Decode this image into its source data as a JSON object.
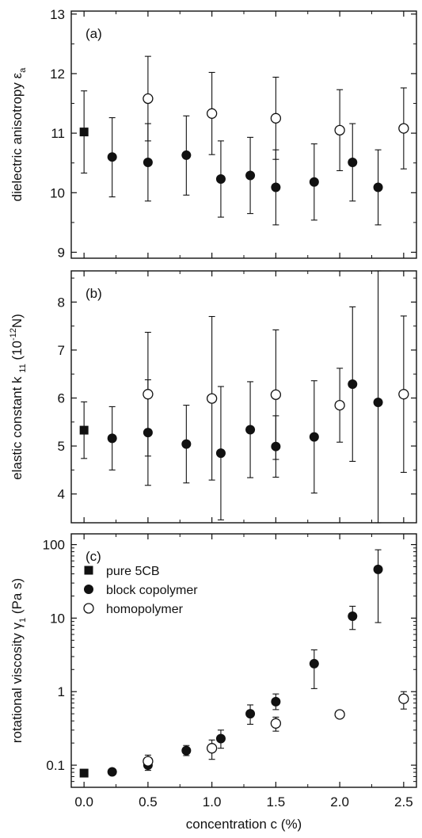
{
  "chart_data": [
    {
      "type": "scatter",
      "panel_label": "(a)",
      "ylabel": "dielectric anisotropy",
      "ylabel_symbol": "ε",
      "ylabel_sub": "a",
      "ylim": [
        8.9,
        13.05
      ],
      "yticks": [
        "9",
        "10",
        "11",
        "12",
        "13"
      ],
      "xlim": [
        -0.1,
        2.6
      ],
      "series": [
        {
          "key": "pure",
          "marker": "square-filled",
          "points": [
            {
              "x": 0.0,
              "y": 11.02,
              "lo": 10.33,
              "hi": 11.71
            }
          ]
        },
        {
          "key": "block",
          "marker": "circle-filled",
          "points": [
            {
              "x": 0.22,
              "y": 10.6,
              "lo": 9.93,
              "hi": 11.26
            },
            {
              "x": 0.5,
              "y": 10.51,
              "lo": 9.86,
              "hi": 11.16
            },
            {
              "x": 0.8,
              "y": 10.63,
              "lo": 9.96,
              "hi": 11.29
            },
            {
              "x": 1.07,
              "y": 10.23,
              "lo": 9.59,
              "hi": 10.87
            },
            {
              "x": 1.3,
              "y": 10.29,
              "lo": 9.65,
              "hi": 10.93
            },
            {
              "x": 1.5,
              "y": 10.09,
              "lo": 9.46,
              "hi": 10.72
            },
            {
              "x": 1.8,
              "y": 10.18,
              "lo": 9.54,
              "hi": 10.82
            },
            {
              "x": 2.1,
              "y": 10.51,
              "lo": 9.86,
              "hi": 11.16
            },
            {
              "x": 2.3,
              "y": 10.09,
              "lo": 9.46,
              "hi": 10.72
            }
          ]
        },
        {
          "key": "homo",
          "marker": "circle-open",
          "points": [
            {
              "x": 0.5,
              "y": 11.58,
              "lo": 10.87,
              "hi": 12.29
            },
            {
              "x": 1.0,
              "y": 11.33,
              "lo": 10.64,
              "hi": 12.02
            },
            {
              "x": 1.5,
              "y": 11.25,
              "lo": 10.56,
              "hi": 11.94
            },
            {
              "x": 2.0,
              "y": 11.05,
              "lo": 10.37,
              "hi": 11.73
            },
            {
              "x": 2.5,
              "y": 11.08,
              "lo": 10.4,
              "hi": 11.76
            }
          ]
        }
      ]
    },
    {
      "type": "scatter",
      "panel_label": "(b)",
      "ylabel": "elastic constant k",
      "ylabel_sub": "11",
      "ylabel_unit_pre": "(10",
      "ylabel_unit_sup": "-12",
      "ylabel_unit_post": "N)",
      "ylim": [
        3.4,
        8.65
      ],
      "yticks": [
        "4",
        "5",
        "6",
        "7",
        "8"
      ],
      "xlim": [
        -0.1,
        2.6
      ],
      "series": [
        {
          "key": "pure",
          "marker": "square-filled",
          "points": [
            {
              "x": 0.0,
              "y": 5.33,
              "lo": 4.74,
              "hi": 5.92
            }
          ]
        },
        {
          "key": "block",
          "marker": "circle-filled",
          "points": [
            {
              "x": 0.22,
              "y": 5.16,
              "lo": 4.5,
              "hi": 5.82
            },
            {
              "x": 0.5,
              "y": 5.28,
              "lo": 4.18,
              "hi": 6.38
            },
            {
              "x": 0.8,
              "y": 5.04,
              "lo": 4.23,
              "hi": 5.85
            },
            {
              "x": 1.07,
              "y": 4.85,
              "lo": 3.46,
              "hi": 6.24
            },
            {
              "x": 1.3,
              "y": 5.34,
              "lo": 4.34,
              "hi": 6.34
            },
            {
              "x": 1.5,
              "y": 4.99,
              "lo": 4.35,
              "hi": 5.63
            },
            {
              "x": 1.8,
              "y": 5.19,
              "lo": 4.02,
              "hi": 6.36
            },
            {
              "x": 2.1,
              "y": 6.29,
              "lo": 4.68,
              "hi": 7.9
            },
            {
              "x": 2.3,
              "y": 5.91,
              "lo": 3.4,
              "hi": 8.65
            }
          ]
        },
        {
          "key": "homo",
          "marker": "circle-open",
          "points": [
            {
              "x": 0.5,
              "y": 6.08,
              "lo": 4.79,
              "hi": 7.37
            },
            {
              "x": 1.0,
              "y": 5.99,
              "lo": 4.29,
              "hi": 7.7
            },
            {
              "x": 1.5,
              "y": 6.07,
              "lo": 4.72,
              "hi": 7.42
            },
            {
              "x": 2.0,
              "y": 5.85,
              "lo": 5.08,
              "hi": 6.62
            },
            {
              "x": 2.5,
              "y": 6.08,
              "lo": 4.45,
              "hi": 7.71
            }
          ]
        }
      ]
    },
    {
      "type": "scatter",
      "panel_label": "(c)",
      "ylabel": "rotational viscosity",
      "ylabel_symbol": "γ",
      "ylabel_sub": "1",
      "ylabel_unit": "(Pa s)",
      "yscale": "log",
      "ylim": [
        0.05,
        140
      ],
      "yticks": [
        "0.1",
        "1",
        "10",
        "100"
      ],
      "xlim": [
        -0.1,
        2.6
      ],
      "xlabel": "concentration c (%)",
      "xticks": [
        "0.0",
        "0.5",
        "1.0",
        "1.5",
        "2.0",
        "2.5"
      ],
      "legend": {
        "position": "top-left"
      },
      "series": [
        {
          "key": "pure",
          "marker": "square-filled",
          "points": [
            {
              "x": 0.0,
              "y": 0.078,
              "lo": 0.072,
              "hi": 0.084
            }
          ]
        },
        {
          "key": "block",
          "marker": "circle-filled",
          "points": [
            {
              "x": 0.22,
              "y": 0.081,
              "lo": 0.074,
              "hi": 0.089
            },
            {
              "x": 0.5,
              "y": 0.1,
              "lo": 0.085,
              "hi": 0.118
            },
            {
              "x": 0.8,
              "y": 0.158,
              "lo": 0.135,
              "hi": 0.185
            },
            {
              "x": 1.07,
              "y": 0.23,
              "lo": 0.17,
              "hi": 0.3
            },
            {
              "x": 1.3,
              "y": 0.5,
              "lo": 0.36,
              "hi": 0.66
            },
            {
              "x": 1.5,
              "y": 0.73,
              "lo": 0.57,
              "hi": 0.93
            },
            {
              "x": 1.8,
              "y": 2.4,
              "lo": 1.1,
              "hi": 3.7
            },
            {
              "x": 2.1,
              "y": 10.6,
              "lo": 7.0,
              "hi": 14.5
            },
            {
              "x": 2.3,
              "y": 46,
              "lo": 8.7,
              "hi": 85
            }
          ]
        },
        {
          "key": "homo",
          "marker": "circle-open",
          "points": [
            {
              "x": 0.5,
              "y": 0.113,
              "lo": 0.095,
              "hi": 0.137
            },
            {
              "x": 1.0,
              "y": 0.17,
              "lo": 0.12,
              "hi": 0.22
            },
            {
              "x": 1.5,
              "y": 0.37,
              "lo": 0.29,
              "hi": 0.45
            },
            {
              "x": 2.0,
              "y": 0.49,
              "lo": 0.45,
              "hi": 0.54
            },
            {
              "x": 2.5,
              "y": 0.8,
              "lo": 0.58,
              "hi": 1.0
            }
          ]
        }
      ]
    }
  ],
  "legend_labels": {
    "pure": "pure 5CB",
    "block": "block copolymer",
    "homo": "homopolymer"
  }
}
